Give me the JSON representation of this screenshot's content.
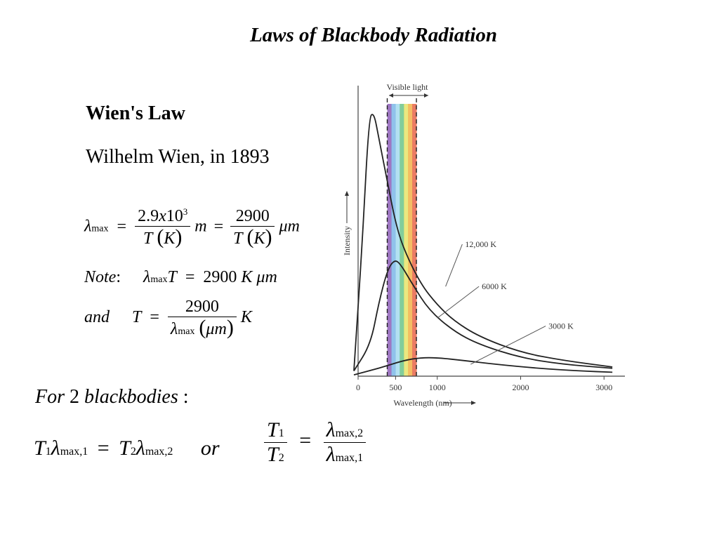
{
  "slide": {
    "title": "Laws of Blackbody Radiation",
    "heading": "Wien's Law",
    "subheading": "Wilhelm Wien, in 1893"
  },
  "equations": {
    "lambda": "λ",
    "max_sub": "max",
    "eq": "=",
    "c1_num_a": "2.9",
    "c1_num_x": "x",
    "c1_num_b": "10",
    "c1_num_exp": "3",
    "den_T": "T",
    "den_K": "K",
    "unit_m": "m",
    "c2_num": "2900",
    "unit_um": "μm",
    "note_word": "Note",
    "colon": ":",
    "note_T": "T",
    "note_value": "2900",
    "note_unit": "K μm",
    "and_word": "and",
    "and_T": "T",
    "and_num": "2900",
    "and_um": "μm",
    "and_K": "K"
  },
  "two_bodies": {
    "label_italic": "For",
    "label_num": "2",
    "label_italic2": "blackbodies",
    "colon": ":",
    "T": "T",
    "sub1": "1",
    "sub2": "2",
    "lambda": "λ",
    "max1": "max,1",
    "max2": "max,2",
    "eq": "=",
    "or": "or"
  },
  "chart_data": {
    "type": "line",
    "xlabel": "Wavelength (nm)",
    "ylabel": "Intensity",
    "x_ticks": [
      0,
      500,
      1000,
      2000,
      3000
    ],
    "xlim": [
      0,
      3200
    ],
    "ylim": [
      0,
      1
    ],
    "grid": false,
    "band_label": "Visible light",
    "visible_band": [
      400,
      750
    ],
    "band_colors": [
      "#8e5fb8",
      "#7db7e8",
      "#a6dcef",
      "#6cc48a",
      "#e7e46a",
      "#f2b24a",
      "#e8654a"
    ],
    "series": [
      {
        "name": "12,000 K",
        "temp": 12000,
        "points": [
          [
            0,
            0.02
          ],
          [
            100,
            0.5
          ],
          [
            180,
            0.98
          ],
          [
            240,
            1.0
          ],
          [
            300,
            0.9
          ],
          [
            400,
            0.74
          ],
          [
            500,
            0.58
          ],
          [
            600,
            0.48
          ],
          [
            800,
            0.35
          ],
          [
            1000,
            0.27
          ],
          [
            1200,
            0.21
          ],
          [
            1500,
            0.15
          ],
          [
            2000,
            0.09
          ],
          [
            2500,
            0.06
          ],
          [
            3100,
            0.035
          ]
        ]
      },
      {
        "name": "6000 K",
        "temp": 6000,
        "points": [
          [
            0,
            0.02
          ],
          [
            200,
            0.12
          ],
          [
            300,
            0.28
          ],
          [
            400,
            0.4
          ],
          [
            480,
            0.44
          ],
          [
            550,
            0.43
          ],
          [
            700,
            0.35
          ],
          [
            900,
            0.25
          ],
          [
            1200,
            0.17
          ],
          [
            1500,
            0.12
          ],
          [
            2000,
            0.07
          ],
          [
            2500,
            0.045
          ],
          [
            3100,
            0.03
          ]
        ]
      },
      {
        "name": "3000 K",
        "temp": 3000,
        "points": [
          [
            0,
            0.005
          ],
          [
            300,
            0.03
          ],
          [
            600,
            0.06
          ],
          [
            800,
            0.07
          ],
          [
            1000,
            0.07
          ],
          [
            1300,
            0.06
          ],
          [
            1700,
            0.045
          ],
          [
            2200,
            0.03
          ],
          [
            2700,
            0.02
          ],
          [
            3100,
            0.015
          ]
        ]
      }
    ]
  }
}
